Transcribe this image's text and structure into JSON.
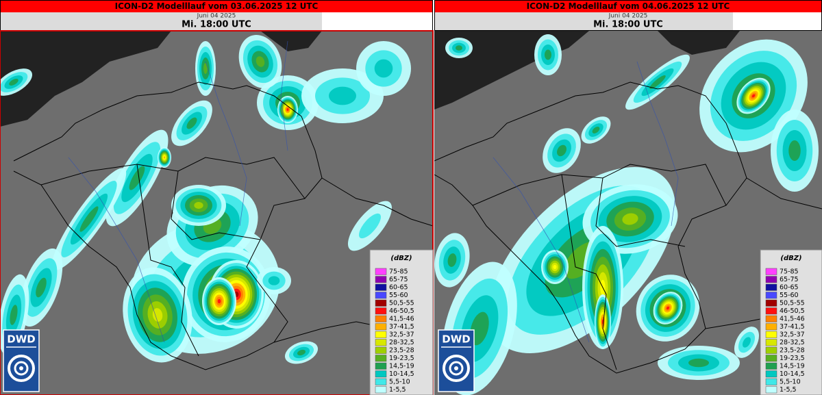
{
  "panels": [
    {
      "title": "ICON-D2 Modelllauf vom 03.06.2025 12 UTC",
      "date": "Juni 04 2025",
      "time": "Mi. 18:00 UTC"
    },
    {
      "title": "ICON-D2 Modelllauf vom 04.06.2025 12 UTC",
      "date": "Juni 04 2025",
      "time": "Mi. 18:00 UTC"
    }
  ],
  "legend": {
    "title": "(dBZ)",
    "items": [
      {
        "label": "75-85",
        "color": "#ff40ff"
      },
      {
        "label": "65-75",
        "color": "#9000b0"
      },
      {
        "label": "60-65",
        "color": "#1010a0"
      },
      {
        "label": "55-60",
        "color": "#4848ff"
      },
      {
        "label": "50,5-55",
        "color": "#a00000"
      },
      {
        "label": "46-50,5",
        "color": "#ff1010"
      },
      {
        "label": "41,5-46",
        "color": "#ff8000"
      },
      {
        "label": "37-41,5",
        "color": "#ffb000"
      },
      {
        "label": "32,5-37",
        "color": "#ffff00"
      },
      {
        "label": "28-32,5",
        "color": "#d8e800"
      },
      {
        "label": "23,5-28",
        "color": "#a0d000"
      },
      {
        "label": "19-23,5",
        "color": "#58b020"
      },
      {
        "label": "14,5-19",
        "color": "#20a050"
      },
      {
        "label": "10-14,5",
        "color": "#00c8c0"
      },
      {
        "label": "5,5-10",
        "color": "#40e8e8"
      },
      {
        "label": "1-5,5",
        "color": "#c0ffff"
      }
    ]
  },
  "logo": "DWD"
}
